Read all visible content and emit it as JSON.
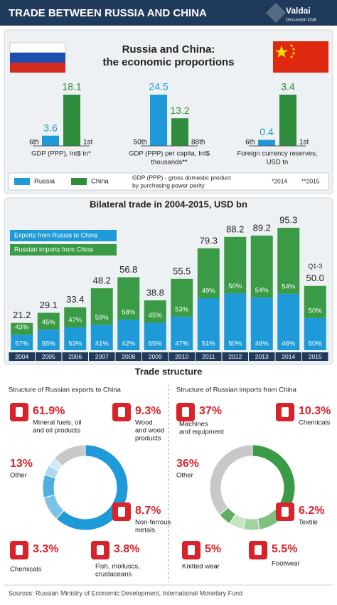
{
  "header": {
    "title": "TRADE BETWEEN RUSSIA AND CHINA",
    "logo": "Valdai",
    "logo_sub": "Discussion Club"
  },
  "chart_data": [
    {
      "type": "bar_pairs",
      "title": [
        "Russia and China:",
        "the economic proportions"
      ],
      "categories": [
        [
          "GDP (PPP), Int$ tn*"
        ],
        [
          "GDP (PPP) per capita, Int$",
          "thousands**"
        ],
        [
          "Foreign currency reserves,",
          "USD tn"
        ]
      ],
      "series": [
        {
          "name": "Russia",
          "color": "#1e9ad8",
          "values": [
            3.6,
            24.5,
            0.4
          ],
          "ranks": [
            "6th",
            "50th",
            "6th"
          ]
        },
        {
          "name": "China",
          "color": "#2e8c3c",
          "values": [
            18.1,
            13.2,
            3.4
          ],
          "ranks": [
            "1st",
            "88th",
            "1st"
          ]
        }
      ],
      "notes": [
        "GDP (PPP) - gross domestic product",
        "by purchasing power parity"
      ],
      "footnotes": [
        "*2014",
        "**2015"
      ]
    },
    {
      "type": "stacked_bar",
      "title": "Bilateral trade in 2004-2015, USD bn",
      "categories": [
        "2004",
        "2005",
        "2006",
        "2007",
        "2008",
        "2009",
        "2010",
        "2011",
        "2012",
        "2013",
        "2014",
        "2015"
      ],
      "values": [
        21.2,
        29.1,
        33.4,
        48.2,
        56.8,
        38.8,
        55.5,
        79.3,
        88.2,
        89.2,
        95.3,
        50.0
      ],
      "value_labels": [
        "21.2",
        "29.1",
        "33.4",
        "48.2",
        "56.8",
        "38.8",
        "55.5",
        "79.3",
        "88.2",
        "89.2",
        "95.3",
        "50.0"
      ],
      "annotation": "Q1-3",
      "series": [
        {
          "name": "Exports from Russia to China",
          "color": "#1e9ad8",
          "values": [
            57,
            55,
            53,
            41,
            42,
            55,
            47,
            51,
            50,
            46,
            46,
            50
          ],
          "value_labels": [
            "57%",
            "55%",
            "53%",
            "41%",
            "42%",
            "55%",
            "47%",
            "51%",
            "50%",
            "46%",
            "46%",
            "50%"
          ]
        },
        {
          "name": "Russian imports from China",
          "color": "#3a9a45",
          "values": [
            43,
            45,
            47,
            59,
            58,
            45,
            53,
            49,
            50,
            54,
            54,
            50
          ],
          "value_labels": [
            "43%",
            "45%",
            "47%",
            "59%",
            "58%",
            "45%",
            "53%",
            "49%",
            "50%",
            "54%",
            "54%",
            "50%"
          ]
        }
      ]
    },
    {
      "type": "donut",
      "title": "Structure of Russian exports to China",
      "categories": [
        [
          "Mineral fuels, oil",
          "and oil products"
        ],
        [
          "Wood",
          "and wood",
          "products"
        ],
        [
          "Non-ferrous",
          "metals"
        ],
        [
          "Fish, molluscs,",
          "crustaceans"
        ],
        [
          "Chemicals"
        ],
        [
          "Other"
        ]
      ],
      "values": [
        61.9,
        9.3,
        8.7,
        3.8,
        3.3,
        13
      ],
      "value_labels": [
        "61.9%",
        "9.3%",
        "8.7%",
        "3.8%",
        "3.3%",
        "13%"
      ],
      "colors": [
        "#1e9ad8",
        "#7cc3e8",
        "#4fb0e0",
        "#a9d8f0",
        "#cfe9f6",
        "#c8c8c8"
      ]
    },
    {
      "type": "donut",
      "title": "Structure of Russian imports from China",
      "categories": [
        [
          "Machines",
          "and equipment"
        ],
        [
          "Chemicals"
        ],
        [
          "Textile"
        ],
        [
          "Footwear"
        ],
        [
          "Knitted wear"
        ],
        [
          "Other"
        ]
      ],
      "values": [
        37,
        10.3,
        6.2,
        5.5,
        5,
        36
      ],
      "value_labels": [
        "37%",
        "10.3%",
        "6.2%",
        "5.5%",
        "5%",
        "36%"
      ],
      "colors": [
        "#3a9a45",
        "#7cc17e",
        "#a3d3a0",
        "#c6e4c2",
        "#5fb064",
        "#c8c8c8"
      ]
    }
  ],
  "trade_structure_title": "Trade structure",
  "footer": "Sources: Russian Ministry of Economic Development, International Monetary Fund"
}
